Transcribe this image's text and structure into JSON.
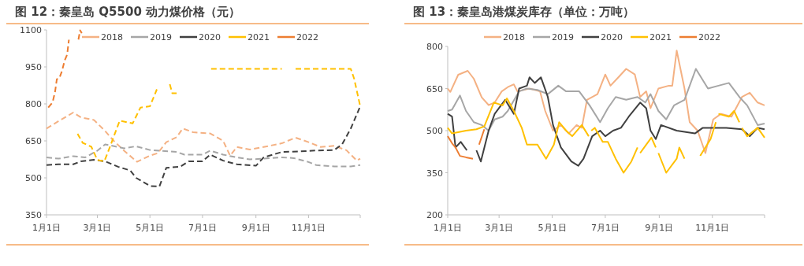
{
  "chart_data": [
    {
      "type": "line",
      "title": "图 12：秦皇岛 Q5500 动力煤价格（元）",
      "legend": "top",
      "line_style": "dashed",
      "xlim": [
        "--01-01",
        "--12-31"
      ],
      "xticks": [
        {
          "value": "--01-01",
          "label": "1月1日"
        },
        {
          "value": "--03-01",
          "label": "3月1日"
        },
        {
          "value": "--05-01",
          "label": "5月1日"
        },
        {
          "value": "--07-01",
          "label": "7月1日"
        },
        {
          "value": "--09-01",
          "label": "9月1日"
        },
        {
          "value": "--11-01",
          "label": "11月1日"
        },
        {
          "value": "--12-31",
          "label": null
        }
      ],
      "ylim": [
        350,
        1100
      ],
      "yticks": [
        350,
        500,
        650,
        800,
        950,
        1100
      ],
      "series": [
        {
          "name": "2018",
          "color": "#f4b183",
          "x": [
            "--01-01",
            "--01-15",
            "--02-01",
            "--02-10",
            "--02-25",
            "--03-10",
            "--03-20",
            "--04-01",
            "--04-16",
            "--05-01",
            "--05-10",
            "--05-20",
            "--06-01",
            "--06-08",
            "--06-20",
            "--07-10",
            "--07-25",
            "--08-02",
            "--08-10",
            "--08-25",
            "--09-10",
            "--10-01",
            "--10-17",
            "--11-01",
            "--11-15",
            "--12-01",
            "--12-15",
            "--12-27",
            "--12-31"
          ],
          "values": [
            700,
            730,
            765,
            745,
            735,
            690,
            650,
            610,
            565,
            590,
            600,
            645,
            665,
            700,
            685,
            680,
            650,
            590,
            625,
            615,
            625,
            640,
            663,
            645,
            625,
            630,
            612,
            570,
            578
          ]
        },
        {
          "name": "2019",
          "color": "#a6a6a6",
          "x": [
            "--01-01",
            "--01-15",
            "--02-01",
            "--02-15",
            "--03-01",
            "--03-10",
            "--04-01",
            "--04-15",
            "--05-01",
            "--06-01",
            "--06-10",
            "--07-01",
            "--07-10",
            "--07-25",
            "--08-10",
            "--08-25",
            "--09-10",
            "--10-01",
            "--10-15",
            "--11-01",
            "--11-10",
            "--12-01",
            "--12-20",
            "--12-31"
          ],
          "values": [
            583,
            578,
            588,
            583,
            610,
            636,
            620,
            628,
            613,
            605,
            594,
            594,
            610,
            594,
            583,
            575,
            578,
            583,
            580,
            564,
            552,
            546,
            546,
            552
          ]
        },
        {
          "name": "2020",
          "color": "#404040",
          "x": [
            "--01-01",
            "--01-15",
            "--02-01",
            "--02-10",
            "--02-25",
            "--03-10",
            "--03-25",
            "--04-08",
            "--04-15",
            "--04-25",
            "--05-01",
            "--05-12",
            "--05-20",
            "--06-05",
            "--06-15",
            "--07-01",
            "--07-10",
            "--07-25",
            "--08-10",
            "--09-01",
            "--09-10",
            "--10-01",
            "--10-20",
            "--11-05",
            "--12-01",
            "--12-10",
            "--12-20",
            "--12-31"
          ],
          "values": [
            552,
            555,
            555,
            567,
            573,
            567,
            545,
            530,
            500,
            480,
            467,
            465,
            541,
            545,
            567,
            567,
            594,
            570,
            555,
            549,
            583,
            605,
            607,
            610,
            613,
            636,
            700,
            790
          ]
        },
        {
          "name": "2021",
          "color": "#ffc000",
          "x": [
            "--02-06",
            "--02-12",
            "--02-22",
            "--03-01",
            "--03-09",
            "--03-15",
            "--03-27",
            "--04-11",
            "--04-20",
            "--05-01",
            "--05-09",
            "--05-16",
            "--05-24",
            "--05-27",
            "--06-01",
            "--06-05",
            "--07-11",
            "--10-01",
            "--10-09",
            "--10-17",
            "--12-20",
            "--12-24",
            "--12-31"
          ],
          "values": [
            679,
            642,
            626,
            573,
            567,
            620,
            732,
            721,
            785,
            790,
            859,
            null,
            880,
            843,
            843,
            null,
            942,
            942,
            null,
            942,
            942,
            902,
            790
          ]
        },
        {
          "name": "2022",
          "color": "#ed7d31",
          "x": [
            "--01-03",
            "--01-08",
            "--01-11",
            "--01-13",
            "--01-16",
            "--01-19",
            "--01-22",
            "--01-25",
            "--01-27",
            "--02-01",
            "--02-07",
            "--02-09",
            "--02-11"
          ],
          "values": [
            785,
            806,
            850,
            900,
            905,
            934,
            976,
            1000,
            1060,
            null,
            1061,
            1098,
            1087
          ]
        }
      ]
    },
    {
      "type": "line",
      "title": "图 13：秦皇岛港煤炭库存（单位：万吨）",
      "legend": "top",
      "line_style": "solid",
      "xlim": [
        "--01-01",
        "--12-31"
      ],
      "xticks": [
        {
          "value": "--01-01",
          "label": "1月1日"
        },
        {
          "value": "--03-01",
          "label": "3月1日"
        },
        {
          "value": "--05-01",
          "label": "5月1日"
        },
        {
          "value": "--07-01",
          "label": "7月1日"
        },
        {
          "value": "--09-01",
          "label": "9月1日"
        },
        {
          "value": "--11-01",
          "label": "11月1日"
        },
        {
          "value": "--12-31",
          "label": null
        }
      ],
      "ylim": [
        200,
        800
      ],
      "yticks": [
        200,
        350,
        500,
        650,
        800
      ],
      "series": [
        {
          "name": "2018",
          "color": "#f4b183",
          "x": [
            "--01-01",
            "--01-04",
            "--01-13",
            "--01-24",
            "--01-31",
            "--02-09",
            "--02-17",
            "--02-24",
            "--03-04",
            "--03-11",
            "--03-18",
            "--03-22",
            "--04-05",
            "--04-17",
            "--04-23",
            "--05-02",
            "--05-11",
            "--05-20",
            "--05-29",
            "--06-04",
            "--06-10",
            "--06-22",
            "--07-01",
            "--07-07",
            "--07-16",
            "--07-25",
            "--08-04",
            "--08-10",
            "--08-17",
            "--08-22",
            "--08-31",
            "--09-12",
            "--09-16",
            "--09-21",
            "--09-30",
            "--10-06",
            "--10-15",
            "--10-24",
            "--11-02",
            "--11-11",
            "--11-23",
            "--12-05",
            "--12-14",
            "--12-23",
            "--12-31"
          ],
          "values": [
            650,
            638,
            699,
            713,
            685,
            619,
            591,
            600,
            640,
            655,
            665,
            640,
            650,
            640,
            570,
            500,
            520,
            490,
            520,
            510,
            610,
            630,
            700,
            660,
            690,
            720,
            700,
            620,
            640,
            580,
            650,
            660,
            660,
            785,
            650,
            530,
            500,
            420,
            540,
            560,
            550,
            620,
            635,
            600,
            590
          ]
        },
        {
          "name": "2019",
          "color": "#a6a6a6",
          "x": [
            "--01-01",
            "--01-06",
            "--01-15",
            "--01-22",
            "--01-31",
            "--02-09",
            "--02-17",
            "--02-24",
            "--03-05",
            "--03-11",
            "--03-24",
            "--04-02",
            "--04-14",
            "--04-26",
            "--05-08",
            "--05-17",
            "--06-01",
            "--06-13",
            "--06-25",
            "--07-04",
            "--07-13",
            "--07-25",
            "--08-07",
            "--08-16",
            "--08-22",
            "--08-31",
            "--09-09",
            "--09-18",
            "--09-30",
            "--10-13",
            "--10-27",
            "--11-08",
            "--11-20",
            "--12-02",
            "--12-11",
            "--12-23",
            "--12-31"
          ],
          "values": [
            570,
            575,
            625,
            570,
            530,
            520,
            500,
            540,
            550,
            570,
            640,
            650,
            645,
            630,
            660,
            640,
            640,
            590,
            530,
            580,
            620,
            610,
            620,
            600,
            630,
            570,
            540,
            590,
            610,
            720,
            650,
            660,
            670,
            620,
            590,
            520,
            525
          ]
        },
        {
          "name": "2020",
          "color": "#404040",
          "x": [
            "--01-01",
            "--01-06",
            "--01-10",
            "--01-16",
            "--01-23",
            "--01-28",
            "--02-03",
            "--02-08",
            "--02-17",
            "--02-24",
            "--03-08",
            "--03-18",
            "--03-24",
            "--04-02",
            "--04-05",
            "--04-11",
            "--04-18",
            "--04-26",
            "--05-02",
            "--05-11",
            "--05-23",
            "--05-31",
            "--06-06",
            "--06-16",
            "--06-25",
            "--07-01",
            "--07-10",
            "--07-19",
            "--07-28",
            "--08-10",
            "--08-17",
            "--08-22",
            "--08-28",
            "--09-03",
            "--09-21",
            "--10-12",
            "--10-21",
            "--11-17",
            "--12-05",
            "--12-14",
            "--12-23",
            "--12-31"
          ],
          "values": [
            560,
            550,
            440,
            460,
            430,
            null,
            430,
            390,
            500,
            560,
            610,
            560,
            650,
            660,
            690,
            670,
            690,
            620,
            520,
            440,
            390,
            375,
            400,
            480,
            500,
            480,
            500,
            510,
            550,
            600,
            580,
            500,
            470,
            520,
            500,
            490,
            510,
            510,
            505,
            480,
            510,
            505
          ]
        },
        {
          "name": "2021",
          "color": "#ffc000",
          "x": [
            "--01-01",
            "--01-06",
            "--01-22",
            "--02-03",
            "--02-12",
            "--02-23",
            "--03-05",
            "--03-10",
            "--03-18",
            "--03-27",
            "--04-02",
            "--04-14",
            "--04-24",
            "--05-03",
            "--05-09",
            "--05-17",
            "--05-24",
            "--06-04",
            "--06-12",
            "--06-13",
            "--06-15",
            "--06-19",
            "--06-28",
            "--07-04",
            "--07-13",
            "--07-22",
            "--07-31",
            "--08-07",
            "--08-08",
            "--08-10",
            "--08-17",
            "--08-23",
            "--08-28",
            "--08-29",
            "--08-31",
            "--09-09",
            "--09-21",
            "--09-24",
            "--09-30",
            "--10-08",
            "--10-18",
            "--10-30",
            "--11-05",
            "--11-06",
            "--11-08",
            "--11-20",
            "--11-26",
            "--12-02",
            "--12-03",
            "--12-05",
            "--12-11",
            "--12-23",
            "--12-31"
          ],
          "values": [
            510,
            490,
            500,
            505,
            515,
            600,
            590,
            615,
            570,
            510,
            450,
            450,
            400,
            450,
            530,
            500,
            480,
            520,
            480,
            null,
            500,
            510,
            460,
            460,
            400,
            350,
            390,
            440,
            null,
            420,
            450,
            475,
            440,
            null,
            420,
            350,
            400,
            440,
            400,
            null,
            410,
            470,
            530,
            null,
            560,
            550,
            570,
            530,
            null,
            510,
            480,
            510,
            475
          ]
        },
        {
          "name": "2022",
          "color": "#ed7d31",
          "x": [
            "--01-01",
            "--01-06",
            "--01-10",
            "--01-15",
            "--01-22",
            "--01-30",
            "--02-03",
            "--02-06",
            "--02-12"
          ],
          "values": [
            480,
            455,
            440,
            410,
            405,
            400,
            null,
            450,
            505
          ]
        }
      ]
    }
  ]
}
